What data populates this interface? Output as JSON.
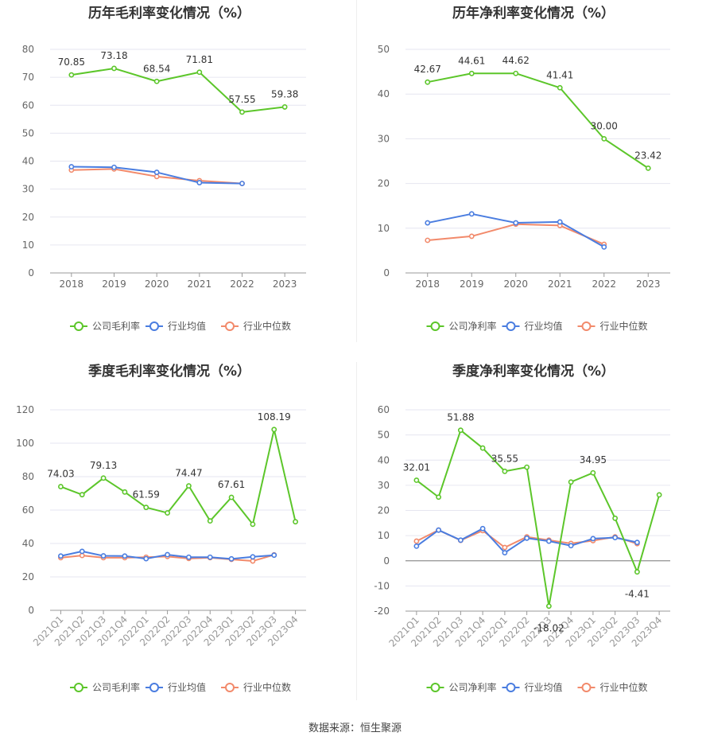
{
  "colors": {
    "company": "#5cc62a",
    "avg": "#4a7de0",
    "median": "#f28a6b"
  },
  "source_text": "数据来源：恒生聚源",
  "chart_data": [
    {
      "type": "line",
      "title": "历年毛利率变化情况（%）",
      "categories": [
        "2018",
        "2019",
        "2020",
        "2021",
        "2022",
        "2023"
      ],
      "ylim": [
        0,
        80
      ],
      "yticks": [
        0,
        10,
        20,
        30,
        40,
        50,
        60,
        70,
        80
      ],
      "grid": true,
      "legend_position": "bottom-center",
      "series": [
        {
          "name": "公司毛利率",
          "values": [
            70.85,
            73.18,
            68.54,
            71.81,
            57.55,
            59.38
          ],
          "labels": [
            "70.85",
            "73.18",
            "68.54",
            "71.81",
            "57.55",
            "59.38"
          ]
        },
        {
          "name": "行业均值",
          "values": [
            38.0,
            37.8,
            36.0,
            32.3,
            32.0,
            null
          ]
        },
        {
          "name": "行业中位数",
          "values": [
            36.8,
            37.2,
            34.5,
            33.0,
            32.0,
            null
          ]
        }
      ]
    },
    {
      "type": "line",
      "title": "历年净利率变化情况（%）",
      "categories": [
        "2018",
        "2019",
        "2020",
        "2021",
        "2022",
        "2023"
      ],
      "ylim": [
        0,
        50
      ],
      "yticks": [
        0,
        10,
        20,
        30,
        40,
        50
      ],
      "grid": true,
      "legend_position": "bottom-center",
      "series": [
        {
          "name": "公司净利率",
          "values": [
            42.67,
            44.61,
            44.62,
            41.41,
            30.0,
            23.42
          ],
          "labels": [
            "42.67",
            "44.61",
            "44.62",
            "41.41",
            "30.00",
            "23.42"
          ]
        },
        {
          "name": "行业均值",
          "values": [
            11.2,
            13.2,
            11.2,
            11.4,
            5.8,
            null
          ]
        },
        {
          "name": "行业中位数",
          "values": [
            7.3,
            8.2,
            10.9,
            10.6,
            6.4,
            null
          ]
        }
      ]
    },
    {
      "type": "line",
      "title": "季度毛利率变化情况（%）",
      "categories": [
        "2021Q1",
        "2021Q2",
        "2021Q3",
        "2021Q4",
        "2022Q1",
        "2022Q2",
        "2022Q3",
        "2022Q4",
        "2023Q1",
        "2023Q2",
        "2023Q3",
        "2023Q4"
      ],
      "ylim": [
        0,
        120
      ],
      "yticks": [
        0,
        20,
        40,
        60,
        80,
        100,
        120
      ],
      "grid": true,
      "legend_position": "bottom-center",
      "series": [
        {
          "name": "公司毛利率",
          "values": [
            74.03,
            69.2,
            79.13,
            70.8,
            61.59,
            58.3,
            74.47,
            53.5,
            67.61,
            51.5,
            108.19,
            53.0
          ],
          "labels": [
            "74.03",
            "",
            "79.13",
            "",
            "61.59",
            "",
            "74.47",
            "",
            "67.61",
            "",
            "108.19",
            ""
          ]
        },
        {
          "name": "行业均值",
          "values": [
            32.5,
            35.3,
            32.6,
            32.5,
            30.9,
            33.3,
            31.8,
            31.8,
            30.8,
            32.0,
            33.0,
            null
          ]
        },
        {
          "name": "行业中位数",
          "values": [
            31.5,
            32.8,
            31.5,
            31.5,
            31.8,
            32.2,
            31.0,
            31.5,
            30.5,
            29.5,
            33.2,
            null
          ]
        }
      ]
    },
    {
      "type": "line",
      "title": "季度净利率变化情况（%）",
      "categories": [
        "2021Q1",
        "2021Q2",
        "2021Q3",
        "2021Q4",
        "2022Q1",
        "2022Q2",
        "2022Q3",
        "2022Q4",
        "2023Q1",
        "2023Q2",
        "2023Q3",
        "2023Q4"
      ],
      "ylim": [
        -20,
        60
      ],
      "yticks": [
        -20,
        -10,
        0,
        10,
        20,
        30,
        40,
        50,
        60
      ],
      "grid": true,
      "legend_position": "bottom-center",
      "series": [
        {
          "name": "公司净利率",
          "values": [
            32.01,
            25.3,
            51.88,
            44.8,
            35.55,
            37.2,
            -18.02,
            31.3,
            34.95,
            16.9,
            -4.41,
            26.2
          ],
          "labels": [
            "32.01",
            "",
            "51.88",
            "",
            "35.55",
            "",
            "-18.02",
            "",
            "34.95",
            "",
            "-4.41",
            ""
          ]
        },
        {
          "name": "行业均值",
          "values": [
            5.8,
            12.2,
            8.2,
            12.8,
            3.2,
            9.0,
            7.8,
            6.0,
            8.8,
            9.2,
            7.3,
            null
          ]
        },
        {
          "name": "行业中位数",
          "values": [
            7.8,
            12.2,
            8.1,
            12.0,
            5.3,
            9.5,
            8.2,
            6.9,
            8.0,
            9.5,
            6.8,
            null
          ]
        }
      ]
    }
  ]
}
